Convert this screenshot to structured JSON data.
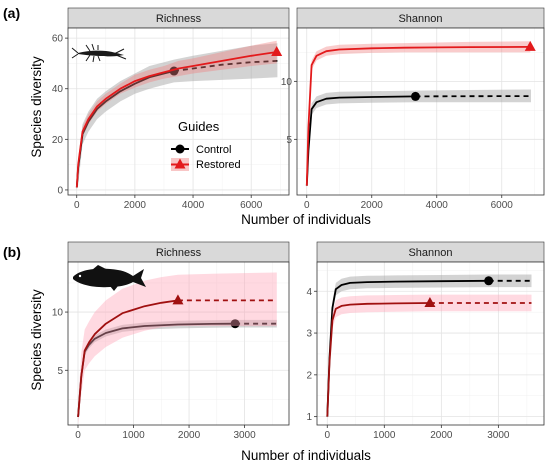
{
  "panel_labels": {
    "a": "(a)",
    "b": "(b)"
  },
  "x_axis_title": "Number of individuals",
  "y_axis_title": "Species diversity",
  "legend": {
    "title": "Guides",
    "items": [
      {
        "label": "Control",
        "color": "#000000",
        "shape": "circle"
      },
      {
        "label": "Restored",
        "color": "#e31a1c",
        "shape": "triangle"
      }
    ]
  },
  "colors": {
    "control_line": "#000000",
    "control_band": "#9e9e9e",
    "restored_line_a": "#e31a1c",
    "restored_band_a": "#f08080",
    "restored_line_b": "#a01010",
    "restored_band_b": "#ff9fb5"
  },
  "icons": {
    "a": "insect-larva-icon",
    "b": "fish-icon"
  },
  "chart_data": [
    {
      "type": "line",
      "panel": "a",
      "strip": "Richness",
      "xlim": [
        -300,
        7300
      ],
      "ylim": [
        -2,
        64
      ],
      "x_ticks": [
        0,
        2000,
        4000,
        6000
      ],
      "x_tick_labels": [
        "0",
        "2000",
        "4000",
        "6000"
      ],
      "y_ticks": [
        0,
        20,
        40,
        60
      ],
      "y_tick_labels": [
        "0",
        "20",
        "40",
        "60"
      ],
      "series": [
        {
          "name": "Control",
          "x": [
            1,
            50,
            200,
            400,
            700,
            1000,
            1500,
            2000,
            2500,
            3000,
            3345,
            4000,
            5000,
            6000,
            6900
          ],
          "y": [
            1,
            9,
            22,
            27,
            32,
            35,
            39,
            42,
            44.5,
            46,
            47,
            48,
            49.5,
            50.5,
            51
          ],
          "band": [
            0,
            2,
            18,
            23,
            28,
            31,
            35,
            38,
            40,
            41.5,
            42.5,
            43,
            43.5,
            44,
            44.5
          ],
          "band_hi": [
            2,
            12,
            26,
            31,
            36,
            39,
            43,
            46,
            49,
            50.5,
            51.5,
            53,
            55,
            57,
            58
          ],
          "observed_end": 3345,
          "marker_x": 3345,
          "marker_y": 47
        },
        {
          "name": "Restored",
          "x": [
            1,
            50,
            200,
            400,
            700,
            1000,
            1500,
            2000,
            2500,
            3000,
            3500,
            4000,
            5000,
            6000,
            6877
          ],
          "y": [
            1,
            10,
            23,
            28,
            33,
            36,
            40,
            43,
            45,
            46.5,
            48,
            49,
            51,
            53,
            54.5
          ],
          "band": [
            0,
            7,
            21,
            26,
            31,
            34,
            38,
            40.5,
            42.5,
            44,
            45,
            46,
            47.5,
            49,
            50
          ],
          "band_hi": [
            2,
            13,
            25,
            30,
            35,
            38,
            42,
            45.5,
            47.5,
            49,
            51,
            52,
            54.5,
            57,
            59
          ],
          "observed_end": 6877,
          "marker_x": 6877,
          "marker_y": 54.5
        }
      ]
    },
    {
      "type": "line",
      "panel": "a",
      "strip": "Shannon",
      "xlim": [
        -300,
        7300
      ],
      "ylim": [
        0.2,
        14.6
      ],
      "x_ticks": [
        0,
        2000,
        4000,
        6000
      ],
      "x_tick_labels": [
        "0",
        "2000",
        "4000",
        "6000"
      ],
      "y_ticks": [
        5,
        10
      ],
      "y_tick_labels": [
        "5",
        "10"
      ],
      "series": [
        {
          "name": "Control",
          "x": [
            1,
            50,
            150,
            300,
            600,
            1000,
            2000,
            3345,
            5000,
            6900
          ],
          "y": [
            1,
            4,
            7.6,
            8.2,
            8.5,
            8.6,
            8.65,
            8.7,
            8.72,
            8.73
          ],
          "band": [
            0.8,
            3.5,
            7.1,
            7.7,
            8.0,
            8.1,
            8.15,
            8.2,
            8.2,
            8.2
          ],
          "band_hi": [
            1.2,
            4.5,
            8.1,
            8.7,
            9.0,
            9.1,
            9.15,
            9.2,
            9.25,
            9.3
          ],
          "observed_end": 3345,
          "marker_x": 3345,
          "marker_y": 8.7
        },
        {
          "name": "Restored",
          "x": [
            1,
            50,
            150,
            300,
            600,
            1000,
            2000,
            3000,
            4000,
            5000,
            6877
          ],
          "y": [
            1,
            6,
            11.4,
            12.2,
            12.6,
            12.75,
            12.85,
            12.9,
            12.93,
            12.95,
            12.97
          ],
          "band": [
            0.8,
            5.5,
            11.0,
            11.8,
            12.2,
            12.35,
            12.45,
            12.5,
            12.5,
            12.5,
            12.5
          ],
          "band_hi": [
            1.2,
            6.5,
            11.8,
            12.6,
            13.0,
            13.15,
            13.25,
            13.3,
            13.35,
            13.4,
            13.45
          ],
          "observed_end": 6877,
          "marker_x": 6877,
          "marker_y": 12.97
        }
      ]
    },
    {
      "type": "line",
      "panel": "b",
      "strip": "Richness",
      "xlim": [
        -180,
        3800
      ],
      "ylim": [
        0.3,
        14.3
      ],
      "x_ticks": [
        0,
        1000,
        2000,
        3000
      ],
      "x_tick_labels": [
        "0",
        "1000",
        "2000",
        "3000"
      ],
      "y_ticks": [
        5,
        10
      ],
      "y_tick_labels": [
        "5",
        "10"
      ],
      "series": [
        {
          "name": "Control",
          "x": [
            1,
            60,
            120,
            200,
            300,
            500,
            800,
            1200,
            1800,
            2400,
            2830,
            3580
          ],
          "y": [
            1,
            4.5,
            6.6,
            7.2,
            7.7,
            8.2,
            8.6,
            8.8,
            8.93,
            8.98,
            9,
            9
          ],
          "band": [
            0.8,
            4.2,
            6.3,
            6.9,
            7.4,
            7.9,
            8.3,
            8.5,
            8.6,
            8.65,
            8.67,
            8.67
          ],
          "band_hi": [
            1.2,
            4.8,
            6.9,
            7.5,
            8.0,
            8.5,
            8.9,
            9.1,
            9.25,
            9.3,
            9.33,
            9.33
          ],
          "observed_end": 2830,
          "marker_x": 2830,
          "marker_y": 9
        },
        {
          "name": "Restored",
          "x": [
            1,
            60,
            120,
            200,
            300,
            500,
            800,
            1200,
            1500,
            1800,
            2500,
            3580
          ],
          "y": [
            1,
            4.5,
            6.7,
            7.4,
            8.1,
            9.0,
            9.9,
            10.5,
            10.8,
            11,
            11,
            11
          ],
          "band": [
            0.3,
            3.0,
            5.0,
            5.6,
            6.2,
            7.0,
            7.8,
            8.4,
            8.7,
            8.8,
            8.8,
            8.8
          ],
          "band_hi": [
            2.2,
            6.5,
            8.5,
            9.2,
            10.0,
            11.0,
            12.0,
            12.7,
            13.0,
            13.2,
            13.3,
            13.4
          ],
          "observed_end": 1800,
          "marker_x": 1800,
          "marker_y": 11
        }
      ]
    },
    {
      "type": "line",
      "panel": "b",
      "strip": "Shannon",
      "xlim": [
        -180,
        3800
      ],
      "ylim": [
        0.8,
        4.7
      ],
      "x_ticks": [
        0,
        1000,
        2000,
        3000
      ],
      "x_tick_labels": [
        "0",
        "1000",
        "2000",
        "3000"
      ],
      "y_ticks": [
        1,
        2,
        3,
        4
      ],
      "y_tick_labels": [
        "1",
        "2",
        "3",
        "4"
      ],
      "series": [
        {
          "name": "Control",
          "x": [
            1,
            40,
            90,
            150,
            250,
            400,
            700,
            1200,
            2000,
            2830,
            3580
          ],
          "y": [
            1,
            2.4,
            3.6,
            4.05,
            4.15,
            4.2,
            4.22,
            4.23,
            4.24,
            4.25,
            4.25
          ],
          "band": [
            0.95,
            2.3,
            3.45,
            3.9,
            4.0,
            4.05,
            4.07,
            4.08,
            4.09,
            4.1,
            4.1
          ],
          "band_hi": [
            1.05,
            2.5,
            3.75,
            4.2,
            4.3,
            4.35,
            4.37,
            4.38,
            4.39,
            4.4,
            4.4
          ],
          "observed_end": 2830,
          "marker_x": 2830,
          "marker_y": 4.25
        },
        {
          "name": "Restored",
          "x": [
            1,
            40,
            90,
            150,
            250,
            400,
            700,
            1200,
            1800,
            2500,
            3580
          ],
          "y": [
            1,
            2.3,
            3.3,
            3.58,
            3.65,
            3.68,
            3.7,
            3.71,
            3.72,
            3.72,
            3.72
          ],
          "band": [
            0.9,
            2.1,
            3.1,
            3.38,
            3.45,
            3.48,
            3.5,
            3.51,
            3.52,
            3.52,
            3.52
          ],
          "band_hi": [
            1.1,
            2.5,
            3.5,
            3.78,
            3.85,
            3.88,
            3.9,
            3.91,
            3.92,
            3.92,
            3.92
          ],
          "observed_end": 1800,
          "marker_x": 1800,
          "marker_y": 3.72
        }
      ]
    }
  ]
}
